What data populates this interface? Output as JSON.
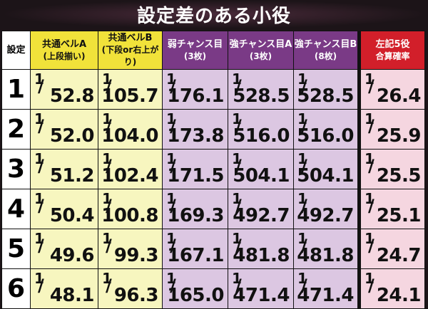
{
  "title": "設定差のある小役",
  "header": {
    "setting": "設定",
    "columns": [
      {
        "line1": "共通ベルA",
        "line2": "(上段揃い)",
        "color": "#f1e23a"
      },
      {
        "line1": "共通ベルB",
        "line2": "(下段or右上がり)",
        "color": "#f1e23a"
      },
      {
        "line1": "弱チャンス目",
        "line2": "(3枚)",
        "color": "#7a3a86"
      },
      {
        "line1": "強チャンス目A",
        "line2": "(3枚)",
        "color": "#7a3a86"
      },
      {
        "line1": "強チャンス目B",
        "line2": "(8枚)",
        "color": "#7a3a86"
      },
      {
        "line1": "左記5役",
        "line2": "合算確率",
        "color": "#d21f2a"
      }
    ]
  },
  "rows": [
    {
      "setting": "1",
      "values": [
        "52.8",
        "105.7",
        "176.1",
        "528.5",
        "528.5",
        "26.4"
      ]
    },
    {
      "setting": "2",
      "values": [
        "52.0",
        "104.0",
        "173.8",
        "516.0",
        "516.0",
        "25.9"
      ]
    },
    {
      "setting": "3",
      "values": [
        "51.2",
        "102.4",
        "171.5",
        "504.1",
        "504.1",
        "25.5"
      ]
    },
    {
      "setting": "4",
      "values": [
        "50.4",
        "100.8",
        "169.3",
        "492.7",
        "492.7",
        "25.1"
      ]
    },
    {
      "setting": "5",
      "values": [
        "49.6",
        "99.3",
        "167.1",
        "481.8",
        "481.8",
        "24.7"
      ]
    },
    {
      "setting": "6",
      "values": [
        "48.1",
        "96.3",
        "165.0",
        "471.4",
        "471.4",
        "24.1"
      ]
    }
  ],
  "numerator": "1"
}
